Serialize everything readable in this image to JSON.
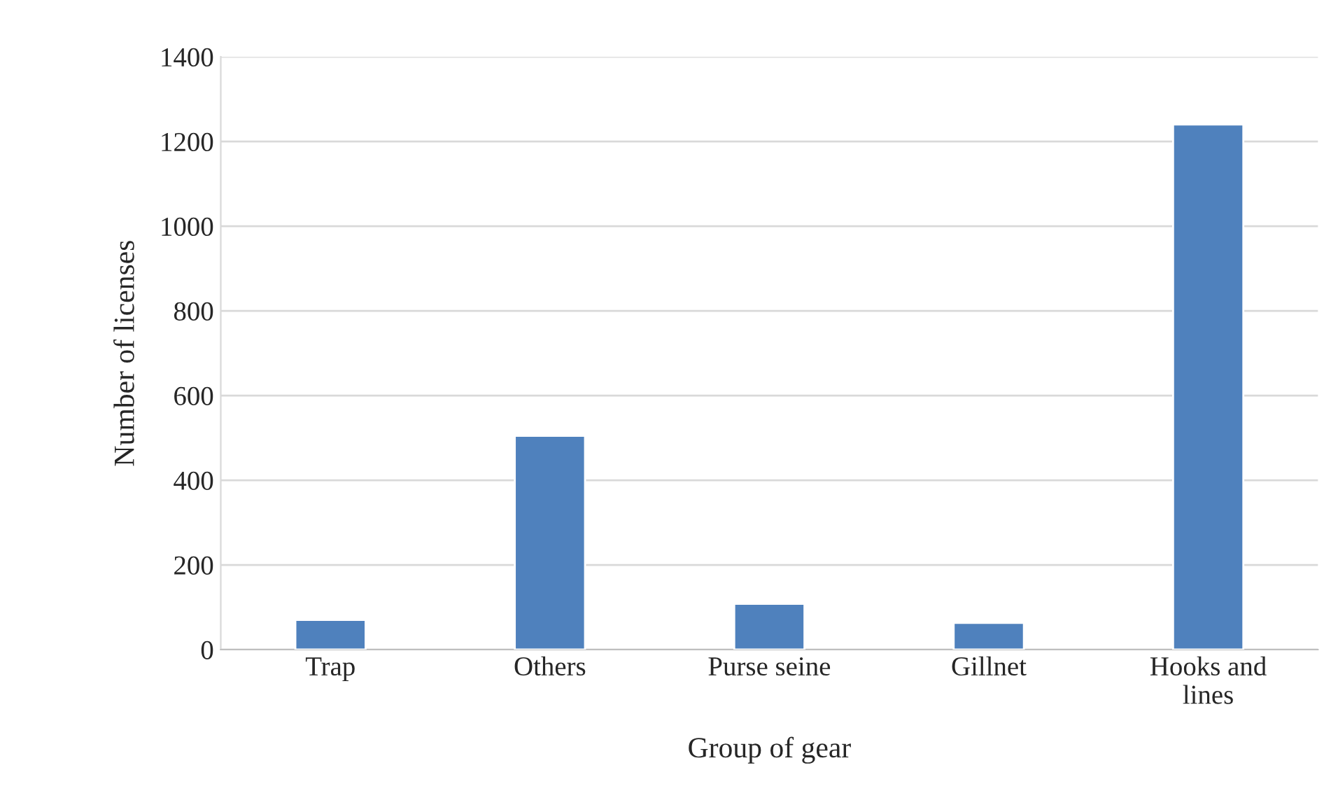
{
  "chart_data": {
    "type": "bar",
    "xlabel": "Group of gear",
    "ylabel": "Number of licenses",
    "categories": [
      "Trap",
      "Others",
      "Purse seine",
      "Gillnet",
      "Hooks and\nlines"
    ],
    "values": [
      70,
      505,
      108,
      63,
      1240
    ],
    "color": "#4f81bd",
    "ylim": [
      0,
      1400
    ],
    "yticks": [
      0,
      200,
      400,
      600,
      800,
      1000,
      1200,
      1400
    ],
    "grid": "y",
    "legend": false
  }
}
